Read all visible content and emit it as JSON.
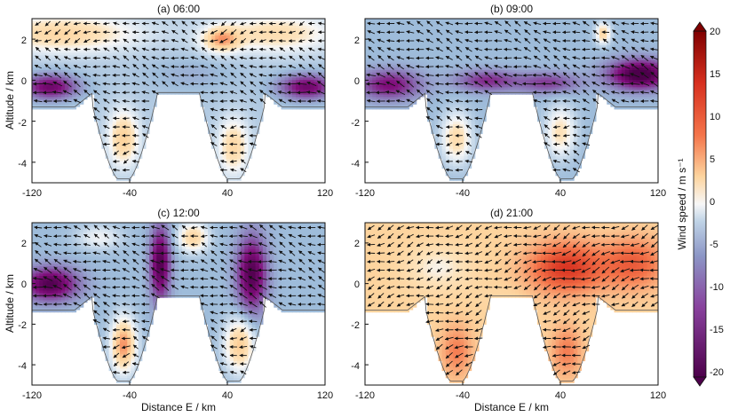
{
  "chart_data": [
    {
      "type": "heatmap",
      "title": "(a) 06:00",
      "xlim": [
        -120,
        120
      ],
      "ylim": [
        -5,
        3
      ],
      "xticks": [
        "-120",
        "-40",
        "40",
        "120"
      ],
      "yticks": [
        "2",
        "0",
        "-2",
        "-4"
      ],
      "ylabel": "Altitude / km",
      "xlabel": "",
      "background": -4,
      "blobs": [
        {
          "x": -95,
          "y": 2.3,
          "sx": 60,
          "sy": 0.9,
          "v": 7
        },
        {
          "x": 80,
          "y": 2.3,
          "sx": 45,
          "sy": 0.9,
          "v": 6
        },
        {
          "x": -105,
          "y": -0.3,
          "sx": 22,
          "sy": 0.6,
          "v": -14
        },
        {
          "x": 105,
          "y": -0.3,
          "sx": 22,
          "sy": 0.6,
          "v": -14
        },
        {
          "x": -45,
          "y": -2.8,
          "sx": 12,
          "sy": 1.3,
          "v": 8
        },
        {
          "x": 45,
          "y": -3.2,
          "sx": 12,
          "sy": 1.3,
          "v": 7
        },
        {
          "x": 10,
          "y": 0.3,
          "sx": 35,
          "sy": 0.8,
          "v": -3
        },
        {
          "x": 35,
          "y": 2.0,
          "sx": 15,
          "sy": 0.6,
          "v": 9
        }
      ]
    },
    {
      "type": "heatmap",
      "title": "(b) 09:00",
      "xlim": [
        -120,
        120
      ],
      "ylim": [
        -5,
        3
      ],
      "xticks": [
        "-120",
        "-40",
        "40",
        "120"
      ],
      "yticks": [
        "2",
        "0",
        "-2",
        "-4"
      ],
      "ylabel": "",
      "xlabel": "",
      "background": -5,
      "blobs": [
        {
          "x": -100,
          "y": -0.2,
          "sx": 25,
          "sy": 0.7,
          "v": -12
        },
        {
          "x": 105,
          "y": 0.3,
          "sx": 25,
          "sy": 0.7,
          "v": -18
        },
        {
          "x": -20,
          "y": 0.0,
          "sx": 25,
          "sy": 0.5,
          "v": -10
        },
        {
          "x": 30,
          "y": -0.1,
          "sx": 25,
          "sy": 0.5,
          "v": -9
        },
        {
          "x": -45,
          "y": -2.8,
          "sx": 12,
          "sy": 1.2,
          "v": 7
        },
        {
          "x": 40,
          "y": -2.5,
          "sx": 12,
          "sy": 1.2,
          "v": 6
        },
        {
          "x": 75,
          "y": 2.3,
          "sx": 6,
          "sy": 0.5,
          "v": 8
        }
      ]
    },
    {
      "type": "heatmap",
      "title": "(c) 12:00",
      "xlim": [
        -120,
        120
      ],
      "ylim": [
        -5,
        3
      ],
      "xticks": [
        "-120",
        "-40",
        "40",
        "120"
      ],
      "yticks": [
        "2",
        "0",
        "-2",
        "-4"
      ],
      "ylabel": "Altitude / km",
      "xlabel": "Distance E / km",
      "background": -5,
      "blobs": [
        {
          "x": -105,
          "y": 0.0,
          "sx": 22,
          "sy": 0.8,
          "v": -16
        },
        {
          "x": -15,
          "y": 1.0,
          "sx": 8,
          "sy": 1.8,
          "v": -16
        },
        {
          "x": 60,
          "y": 0.5,
          "sx": 12,
          "sy": 1.8,
          "v": -16
        },
        {
          "x": -45,
          "y": -3.0,
          "sx": 10,
          "sy": 1.3,
          "v": 12
        },
        {
          "x": 50,
          "y": -3.0,
          "sx": 12,
          "sy": 1.3,
          "v": 9
        },
        {
          "x": 12,
          "y": 2.3,
          "sx": 12,
          "sy": 0.7,
          "v": 8
        },
        {
          "x": -65,
          "y": 2.3,
          "sx": 18,
          "sy": 0.6,
          "v": 3
        }
      ]
    },
    {
      "type": "heatmap",
      "title": "(d) 21:00",
      "xlim": [
        -120,
        120
      ],
      "ylim": [
        -5,
        3
      ],
      "xticks": [
        "-120",
        "-40",
        "40",
        "120"
      ],
      "yticks": [
        "2",
        "0",
        "-2",
        "-4"
      ],
      "ylabel": "",
      "xlabel": "Distance E / km",
      "background": 5,
      "blobs": [
        {
          "x": 45,
          "y": 0.8,
          "sx": 30,
          "sy": 1.2,
          "v": 11
        },
        {
          "x": 100,
          "y": 1.0,
          "sx": 25,
          "sy": 1.2,
          "v": 8
        },
        {
          "x": -60,
          "y": 0.8,
          "sx": 25,
          "sy": 1.0,
          "v": -3
        },
        {
          "x": -10,
          "y": -0.6,
          "sx": 25,
          "sy": 0.6,
          "v": 1
        },
        {
          "x": -45,
          "y": -3.3,
          "sx": 12,
          "sy": 1.2,
          "v": 6
        },
        {
          "x": 45,
          "y": -3.3,
          "sx": 12,
          "sy": 1.2,
          "v": 6
        }
      ]
    }
  ],
  "colorbar": {
    "label": "Wind speed / m s⁻¹",
    "min": -20,
    "max": 20,
    "ticks": [
      "20",
      "15",
      "10",
      "5",
      "0",
      "-5",
      "-10",
      "-15",
      "-20"
    ],
    "colors": {
      "neg_max": "#4d004b",
      "neg_mid": "#8c6bb1",
      "neg_low": "#9ebcda",
      "zero": "#f7f7f7",
      "pos_low": "#fdd49e",
      "pos_mid": "#f4744a",
      "pos_max": "#67000d"
    }
  }
}
